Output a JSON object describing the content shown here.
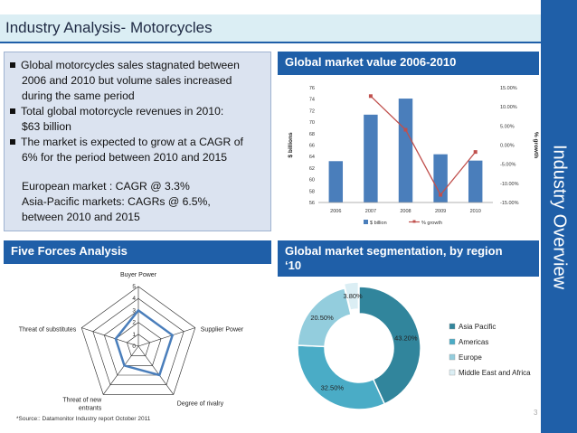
{
  "title": "Industry Analysis- Motorcycles",
  "side_label": "Industry Overview",
  "bullets": {
    "b1_l1": "Global motorcycles sales stagnated between",
    "b1_l2": "2006 and 2010 but volume sales increased",
    "b1_l3": "during the same period",
    "b2_l1": "Total global motorcycle revenues in 2010:",
    "b2_l2": "$63 billion",
    "b3_l1": "The market is expected to grow at a CAGR of",
    "b3_l2": "6% for the period between 2010 and 2015",
    "e_l1": "European market : CAGR @ 3.3%",
    "e_l2": "Asia-Pacific markets: CAGRs @ 6.5%,",
    "e_l3": "between 2010 and 2015"
  },
  "headers": {
    "five_forces": "Five Forces Analysis",
    "market_value": "Global market value 2006-2010",
    "segmentation_l1": "Global market segmentation, by region",
    "segmentation_l2": "‘10"
  },
  "source": "*Source:: Datamonitor Industry report October 2011",
  "page_number": "3",
  "colors": {
    "accent": "#1f5fa8",
    "bar": "#4a7ebb",
    "line": "#c0504d",
    "radar": "#4a7ebb"
  },
  "chart_data": [
    {
      "type": "bar",
      "title": "Global market value 2006-2010",
      "categories": [
        "2006",
        "2007",
        "2008",
        "2009",
        "2010"
      ],
      "ylabel": "$ billions",
      "y2label": "% growth",
      "ylim": [
        56,
        76
      ],
      "y_ticks": [
        "56",
        "58",
        "60",
        "62",
        "64",
        "66",
        "68",
        "70",
        "72",
        "74",
        "76"
      ],
      "y2lim": [
        -15,
        15
      ],
      "y2_ticks": [
        "15.00%",
        "10.00%",
        "5.00%",
        "0.00%",
        "-5.00%",
        "-10.00%",
        "-15.00%"
      ],
      "series": [
        {
          "name": "$ billion",
          "kind": "bar",
          "values": [
            63.2,
            71.3,
            74.1,
            64.4,
            63.3
          ]
        },
        {
          "name": "% growth",
          "kind": "line",
          "x": [
            "2007",
            "2008",
            "2009",
            "2010"
          ],
          "values": [
            12.8,
            4.0,
            -13.0,
            -1.8
          ]
        }
      ],
      "legend": "bottom"
    },
    {
      "type": "radar",
      "title": "Five Forces Analysis",
      "axes": [
        "Buyer Power",
        "Supplier Power",
        "Degree of rivalry",
        "Threat of new entrants",
        "Threat of substitutes"
      ],
      "axis_label_lines": [
        [
          "Buyer Power"
        ],
        [
          "Supplier Power"
        ],
        [
          "Degree of rivalry"
        ],
        [
          "Threat of new",
          "entrants"
        ],
        [
          "Threat of substitutes"
        ]
      ],
      "ticks": [
        "0",
        "1",
        "2",
        "3",
        "4",
        "5"
      ],
      "rmax": 5,
      "values": [
        3,
        3,
        3,
        2,
        2
      ]
    },
    {
      "type": "pie",
      "title": "Global market segmentation, by region ‘10",
      "labels": [
        "Asia Pacific",
        "Americas",
        "Europe",
        "Middle East and Africa"
      ],
      "values": [
        43.2,
        32.5,
        20.5,
        3.8
      ],
      "value_labels": [
        "43.20%",
        "32.50%",
        "20.50%",
        "3.80%"
      ],
      "colors": [
        "#31859c",
        "#4aacc6",
        "#93cddd",
        "#dbeef4"
      ],
      "legend": "right"
    }
  ]
}
